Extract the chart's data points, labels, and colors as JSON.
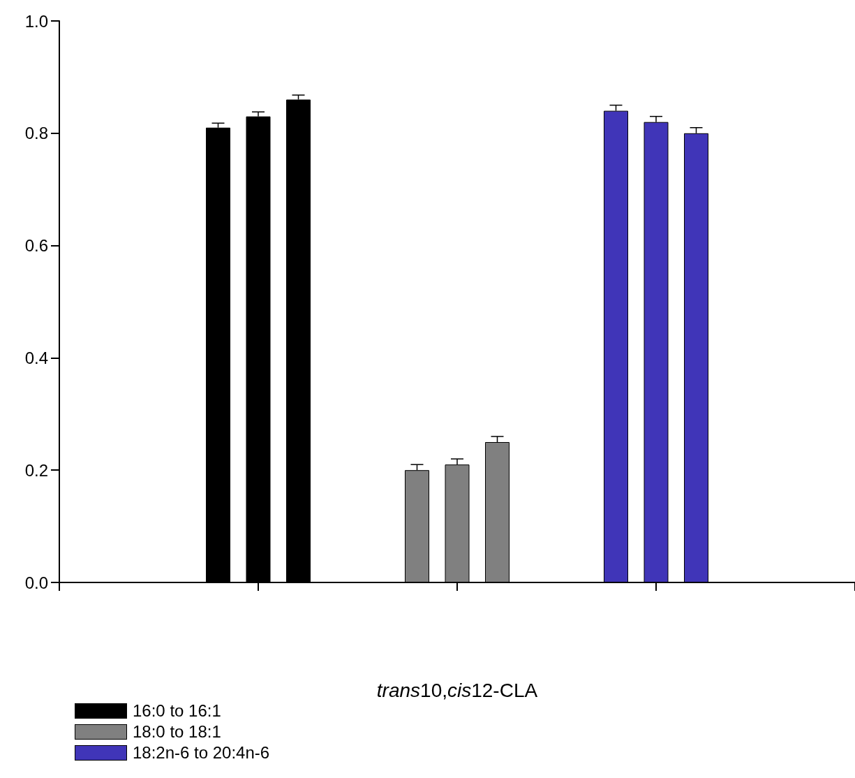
{
  "chart_data": {
    "type": "bar",
    "xlabel": "trans10,cis12-CLA",
    "categories": [
      null,
      null,
      null
    ],
    "ylim": [
      0,
      1.0
    ],
    "yticks": [
      {
        "value": 0,
        "label": "0.0"
      },
      {
        "value": 0.2,
        "label": "0.2"
      },
      {
        "value": 0.4,
        "label": "0.4"
      },
      {
        "value": 0.6,
        "label": "0.6"
      },
      {
        "value": 0.8,
        "label": "0.8"
      },
      {
        "value": 1,
        "label": "1.0"
      }
    ],
    "series": [
      {
        "colors": [
          "#000000",
          "#808080",
          "#4035b8"
        ],
        "values": [
          0.81,
          0.2,
          0.84
        ],
        "errors": [
          0.008,
          0.01,
          0.01
        ]
      },
      {
        "colors": [
          "#000000",
          "#808080",
          "#4035b8"
        ],
        "values": [
          0.83,
          0.21,
          0.82
        ],
        "errors": [
          0.008,
          0.01,
          0.01
        ]
      },
      {
        "colors": [
          "#000000",
          "#808080",
          "#4035b8"
        ],
        "values": [
          0.86,
          0.25,
          0.8
        ],
        "errors": [
          0.008,
          0.01,
          0.01
        ]
      }
    ],
    "annotations": [
      "16:0 to 16:1",
      "18:0 to 18:1",
      "18:2n-6 to 20:4n-6"
    ],
    "tick_labels": "y",
    "grid": false
  }
}
